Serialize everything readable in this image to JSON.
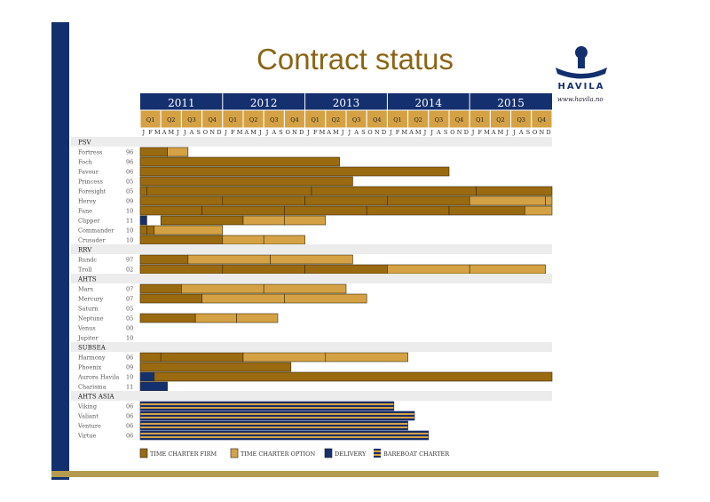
{
  "title": "Contract status",
  "logo": {
    "text": "HAVILA",
    "url": "www.havila.no"
  },
  "chart_data": {
    "type": "gantt",
    "x_start": 2011.0,
    "x_end": 2016.0,
    "years": [
      "2011",
      "2012",
      "2013",
      "2014",
      "2015"
    ],
    "quarters": [
      "Q1",
      "Q2",
      "Q3",
      "Q4"
    ],
    "months": [
      "J",
      "F",
      "M",
      "A",
      "M",
      "J",
      "J",
      "A",
      "S",
      "O",
      "N",
      "D"
    ],
    "colors": {
      "firm": "#9a6a10",
      "option": "#d4a245",
      "delivery": "#15306f",
      "barebowl": "#1a2d66"
    },
    "legend": [
      {
        "key": "firm",
        "label": "TIME CHARTER FIRM"
      },
      {
        "key": "option",
        "label": "TIME CHARTER OPTION"
      },
      {
        "key": "delivery",
        "label": "DELIVERY"
      },
      {
        "key": "bareboat",
        "label": "BAREBOAT CHARTER"
      }
    ],
    "rows": [
      {
        "kind": "section",
        "name": "PSV"
      },
      {
        "kind": "vessel",
        "name": "Fortress",
        "year": "96",
        "segments": [
          {
            "type": "firm",
            "start": 2011.0,
            "end": 2011.33
          },
          {
            "type": "option",
            "start": 2011.33,
            "end": 2011.58
          }
        ]
      },
      {
        "kind": "vessel",
        "name": "Foch",
        "year": "96",
        "segments": [
          {
            "type": "firm",
            "start": 2011.0,
            "end": 2013.42
          }
        ]
      },
      {
        "kind": "vessel",
        "name": "Favour",
        "year": "06",
        "segments": [
          {
            "type": "firm",
            "start": 2011.0,
            "end": 2014.75
          }
        ]
      },
      {
        "kind": "vessel",
        "name": "Princess",
        "year": "05",
        "segments": [
          {
            "type": "firm",
            "start": 2011.0,
            "end": 2013.58
          }
        ]
      },
      {
        "kind": "vessel",
        "name": "Foresight",
        "year": "05",
        "segments": [
          {
            "type": "firm",
            "start": 2011.0,
            "end": 2011.08
          },
          {
            "type": "firm",
            "start": 2011.08,
            "end": 2013.08
          },
          {
            "type": "firm",
            "start": 2013.08,
            "end": 2015.08
          },
          {
            "type": "firm",
            "start": 2015.08,
            "end": 2016.0
          }
        ]
      },
      {
        "kind": "vessel",
        "name": "Heroy",
        "year": "09",
        "segments": [
          {
            "type": "firm",
            "start": 2011.0,
            "end": 2012.0
          },
          {
            "type": "firm",
            "start": 2012.0,
            "end": 2013.0
          },
          {
            "type": "firm",
            "start": 2013.0,
            "end": 2014.0
          },
          {
            "type": "firm",
            "start": 2014.0,
            "end": 2015.0
          },
          {
            "type": "option",
            "start": 2015.0,
            "end": 2015.92
          },
          {
            "type": "option",
            "start": 2015.92,
            "end": 2016.0
          }
        ]
      },
      {
        "kind": "vessel",
        "name": "Fane",
        "year": "10",
        "segments": [
          {
            "type": "firm",
            "start": 2011.0,
            "end": 2011.75
          },
          {
            "type": "firm",
            "start": 2011.75,
            "end": 2012.75
          },
          {
            "type": "firm",
            "start": 2012.75,
            "end": 2013.75
          },
          {
            "type": "firm",
            "start": 2013.75,
            "end": 2014.75
          },
          {
            "type": "firm",
            "start": 2014.75,
            "end": 2015.67
          },
          {
            "type": "option",
            "start": 2015.67,
            "end": 2016.0
          }
        ]
      },
      {
        "kind": "vessel",
        "name": "Clipper",
        "year": "11",
        "segments": [
          {
            "type": "delivery",
            "start": 2011.0,
            "end": 2011.08
          },
          {
            "type": "firm",
            "start": 2011.25,
            "end": 2012.25
          },
          {
            "type": "option",
            "start": 2012.25,
            "end": 2012.75
          },
          {
            "type": "option",
            "start": 2012.75,
            "end": 2013.25
          }
        ]
      },
      {
        "kind": "vessel",
        "name": "Commander",
        "year": "10",
        "segments": [
          {
            "type": "firm",
            "start": 2011.0,
            "end": 2011.08
          },
          {
            "type": "firm",
            "start": 2011.08,
            "end": 2011.17
          },
          {
            "type": "option",
            "start": 2011.17,
            "end": 2012.0
          }
        ]
      },
      {
        "kind": "vessel",
        "name": "Crusader",
        "year": "10",
        "segments": [
          {
            "type": "firm",
            "start": 2011.0,
            "end": 2012.0
          },
          {
            "type": "option",
            "start": 2012.0,
            "end": 2012.5
          },
          {
            "type": "option",
            "start": 2012.5,
            "end": 2013.0
          }
        ]
      },
      {
        "kind": "section",
        "name": "RRV"
      },
      {
        "kind": "vessel",
        "name": "Rundc",
        "year": "97",
        "segments": [
          {
            "type": "firm",
            "start": 2011.0,
            "end": 2011.58
          },
          {
            "type": "option",
            "start": 2011.58,
            "end": 2012.58
          },
          {
            "type": "option",
            "start": 2012.58,
            "end": 2013.58
          }
        ]
      },
      {
        "kind": "vessel",
        "name": "Troll",
        "year": "02",
        "segments": [
          {
            "type": "firm",
            "start": 2011.0,
            "end": 2012.0
          },
          {
            "type": "firm",
            "start": 2012.0,
            "end": 2013.0
          },
          {
            "type": "firm",
            "start": 2013.0,
            "end": 2014.0
          },
          {
            "type": "option",
            "start": 2014.0,
            "end": 2015.0
          },
          {
            "type": "option",
            "start": 2015.0,
            "end": 2015.92
          }
        ]
      },
      {
        "kind": "section",
        "name": "AHTS"
      },
      {
        "kind": "vessel",
        "name": "Mars",
        "year": "07",
        "segments": [
          {
            "type": "firm",
            "start": 2011.0,
            "end": 2011.5
          },
          {
            "type": "option",
            "start": 2011.5,
            "end": 2012.5
          },
          {
            "type": "option",
            "start": 2012.5,
            "end": 2013.5
          }
        ]
      },
      {
        "kind": "vessel",
        "name": "Mercury",
        "year": "07",
        "segments": [
          {
            "type": "firm",
            "start": 2011.0,
            "end": 2011.75
          },
          {
            "type": "option",
            "start": 2011.75,
            "end": 2012.75
          },
          {
            "type": "option",
            "start": 2012.75,
            "end": 2013.75
          }
        ]
      },
      {
        "kind": "vessel",
        "name": "Saturn",
        "year": "05",
        "segments": []
      },
      {
        "kind": "vessel",
        "name": "Neptune",
        "year": "05",
        "segments": [
          {
            "type": "firm",
            "start": 2011.0,
            "end": 2011.67
          },
          {
            "type": "option",
            "start": 2011.67,
            "end": 2012.17
          },
          {
            "type": "option",
            "start": 2012.17,
            "end": 2012.67
          }
        ]
      },
      {
        "kind": "vessel",
        "name": "Venus",
        "year": "00",
        "segments": []
      },
      {
        "kind": "vessel",
        "name": "Jupiter",
        "year": "10",
        "segments": []
      },
      {
        "kind": "section",
        "name": "SUBSEA"
      },
      {
        "kind": "vessel",
        "name": "Harmony",
        "year": "06",
        "segments": [
          {
            "type": "firm",
            "start": 2011.0,
            "end": 2011.25
          },
          {
            "type": "firm",
            "start": 2011.25,
            "end": 2012.25
          },
          {
            "type": "option",
            "start": 2012.25,
            "end": 2013.25
          },
          {
            "type": "option",
            "start": 2013.25,
            "end": 2014.25
          }
        ]
      },
      {
        "kind": "vessel",
        "name": "Phoenix",
        "year": "09",
        "segments": [
          {
            "type": "firm",
            "start": 2011.0,
            "end": 2012.83
          }
        ]
      },
      {
        "kind": "vessel",
        "name": "Aurora Havila",
        "year": "10",
        "segments": [
          {
            "type": "delivery",
            "start": 2011.0,
            "end": 2011.17
          },
          {
            "type": "firm",
            "start": 2011.17,
            "end": 2016.0
          }
        ]
      },
      {
        "kind": "vessel",
        "name": "Charisma",
        "year": "11",
        "segments": [
          {
            "type": "delivery",
            "start": 2011.0,
            "end": 2011.33
          }
        ]
      },
      {
        "kind": "section",
        "name": "AHTS ASIA"
      },
      {
        "kind": "vessel",
        "name": "Viking",
        "year": "06",
        "segments": [
          {
            "type": "bareboat",
            "start": 2011.0,
            "end": 2014.08
          }
        ]
      },
      {
        "kind": "vessel",
        "name": "Valiant",
        "year": "06",
        "segments": [
          {
            "type": "bareboat",
            "start": 2011.0,
            "end": 2014.33
          }
        ]
      },
      {
        "kind": "vessel",
        "name": "Venture",
        "year": "06",
        "segments": [
          {
            "type": "bareboat",
            "start": 2011.0,
            "end": 2014.25
          }
        ]
      },
      {
        "kind": "vessel",
        "name": "Virtue",
        "year": "06",
        "segments": [
          {
            "type": "bareboat",
            "start": 2011.0,
            "end": 2014.5
          }
        ]
      }
    ]
  }
}
